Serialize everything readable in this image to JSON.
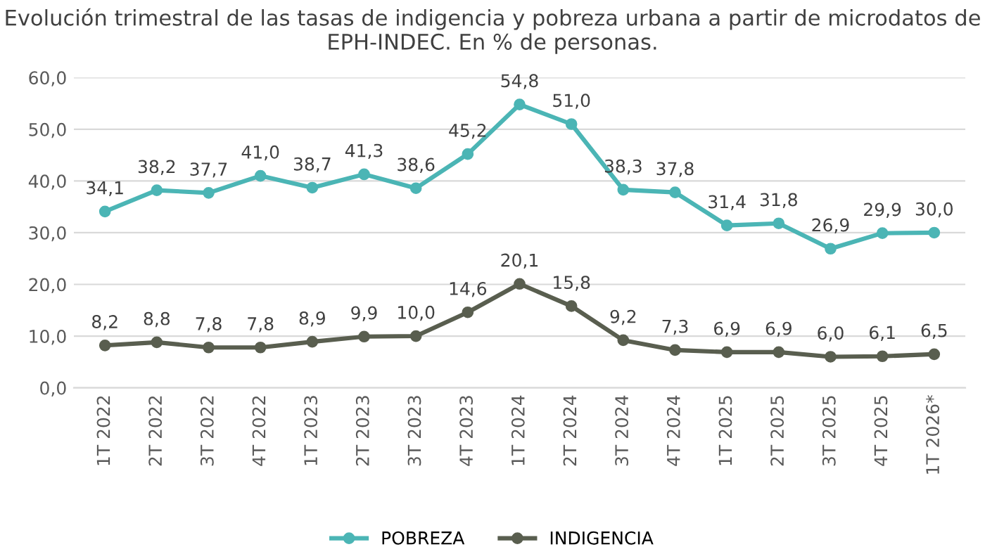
{
  "chart_data": {
    "type": "line",
    "title": "Evolución trimestral de las tasas de indigencia y pobreza urbana a partir de microdatos de EPH-INDEC. En % de personas.",
    "categories": [
      "1T 2022",
      "2T 2022",
      "3T 2022",
      "4T 2022",
      "1T 2023",
      "2T 2023",
      "3T 2023",
      "4T 2023",
      "1T 2024",
      "2T 2024",
      "3T 2024",
      "4T 2024",
      "1T 2025",
      "2T 2025",
      "3T 2025",
      "4T 2025",
      "1T 2026*"
    ],
    "series": [
      {
        "name": "POBREZA",
        "color": "#4bb5b5",
        "values": [
          34.1,
          38.2,
          37.7,
          41.0,
          38.7,
          41.3,
          38.6,
          45.2,
          54.8,
          51.0,
          38.3,
          37.8,
          31.4,
          31.8,
          26.9,
          29.9,
          30.0
        ],
        "value_labels": [
          "34,1",
          "38,2",
          "37,7",
          "41,0",
          "38,7",
          "41,3",
          "38,6",
          "45,2",
          "54,8",
          "51,0",
          "38,3",
          "37,8",
          "31,4",
          "31,8",
          "26,9",
          "29,9",
          "30,0"
        ]
      },
      {
        "name": "INDIGENCIA",
        "color": "#595e4f",
        "values": [
          8.2,
          8.8,
          7.8,
          7.8,
          8.9,
          9.9,
          10.0,
          14.6,
          20.1,
          15.8,
          9.2,
          7.3,
          6.9,
          6.9,
          6.0,
          6.1,
          6.5
        ],
        "value_labels": [
          "8,2",
          "8,8",
          "7,8",
          "7,8",
          "8,9",
          "9,9",
          "10,0",
          "14,6",
          "20,1",
          "15,8",
          "9,2",
          "7,3",
          "6,9",
          "6,9",
          "6,0",
          "6,1",
          "6,5"
        ]
      }
    ],
    "ylim": [
      0,
      60
    ],
    "yticks": [
      {
        "value": 0,
        "label": "0,0"
      },
      {
        "value": 10,
        "label": "10,0"
      },
      {
        "value": 20,
        "label": "20,0"
      },
      {
        "value": 30,
        "label": "30,0"
      },
      {
        "value": 40,
        "label": "40,0"
      },
      {
        "value": 50,
        "label": "50,0"
      },
      {
        "value": 60,
        "label": "60,0"
      }
    ],
    "grid": "y",
    "legend": "bottom",
    "marker": "circle",
    "line_style": "solid"
  }
}
